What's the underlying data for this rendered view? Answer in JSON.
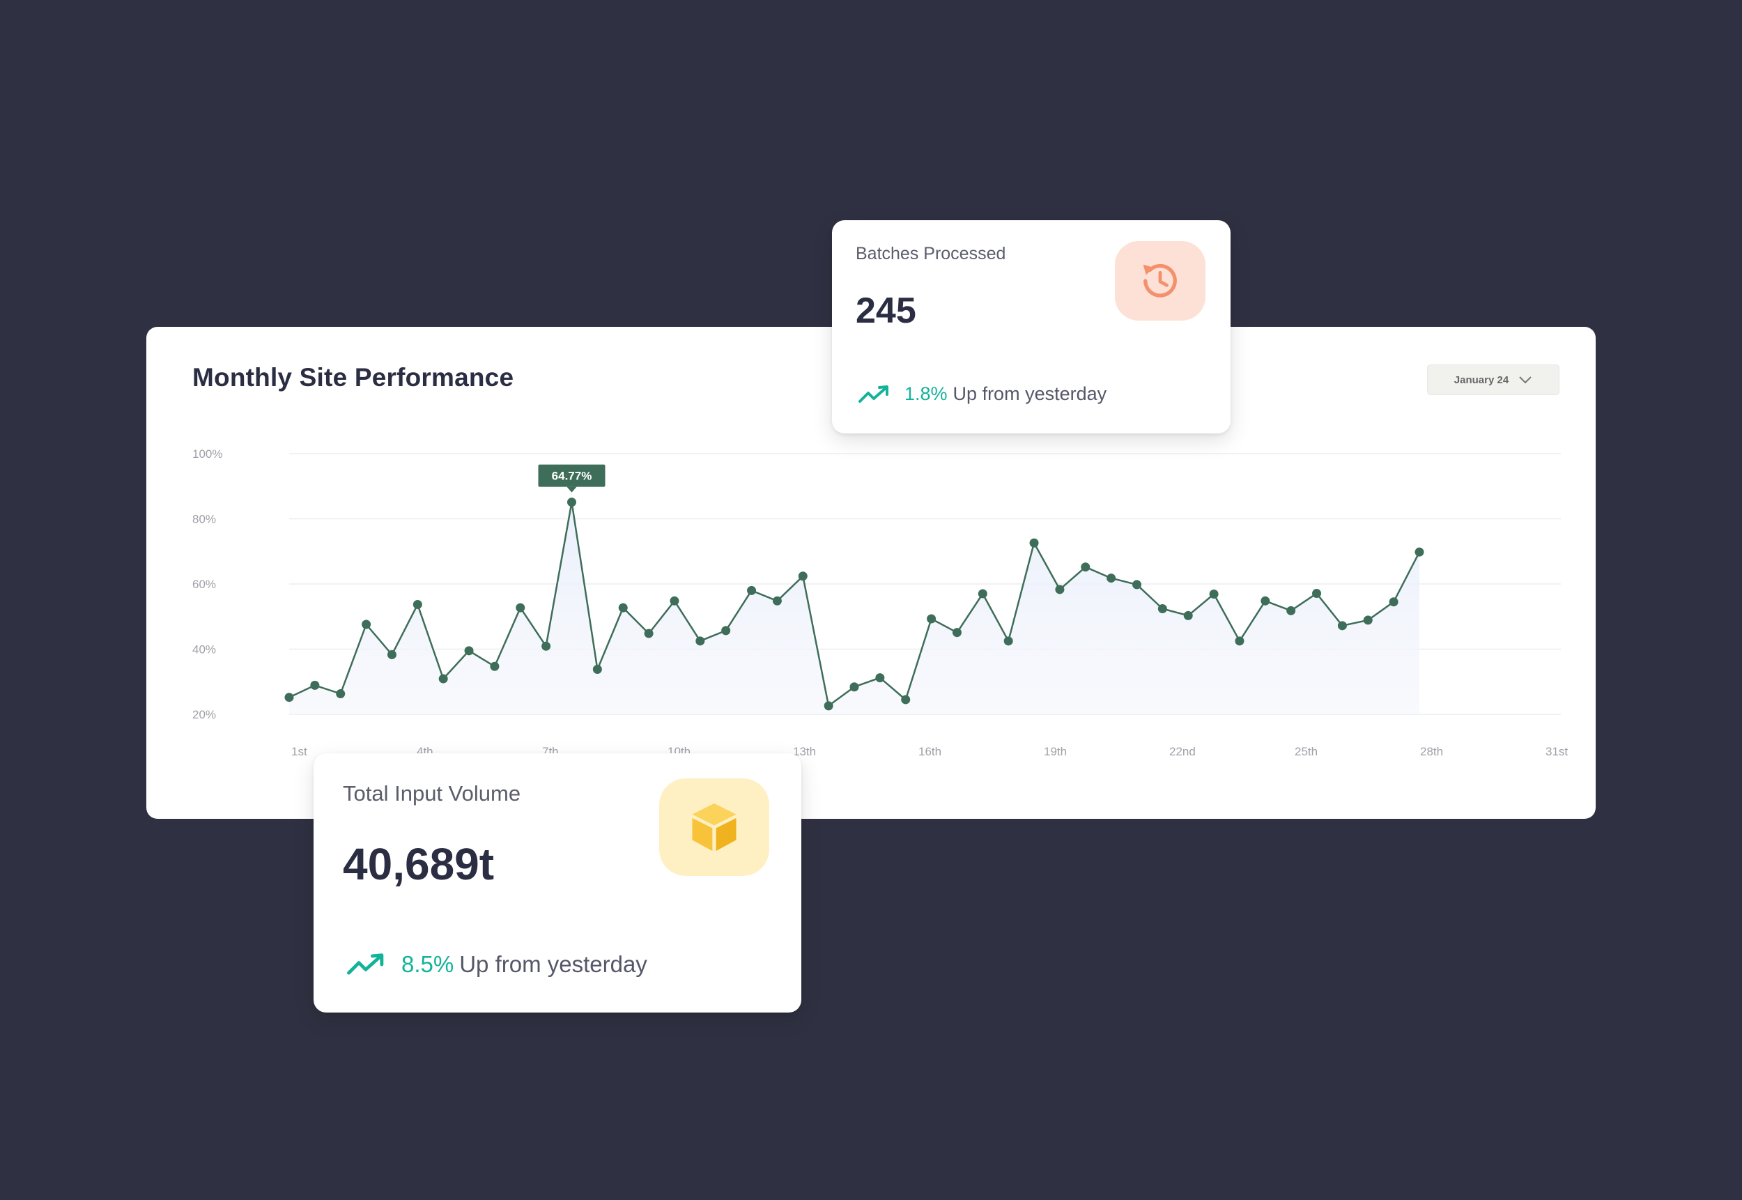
{
  "chart_card": {
    "title": "Monthly Site Performance",
    "date_select": "January 24",
    "tooltip": "64.77%"
  },
  "batches_card": {
    "label": "Batches Processed",
    "value": "245",
    "trend_percent": "1.8%",
    "trend_text": "Up from yesterday",
    "icon": "history-clock-icon",
    "icon_color": "#f4906c"
  },
  "input_card": {
    "label": "Total Input Volume",
    "value": "40,689t",
    "trend_percent": "8.5%",
    "trend_text": "Up from yesterday",
    "icon": "box-icon",
    "icon_color": "#f8c33a"
  },
  "colors": {
    "line": "#3e6d59",
    "trend": "#13b39a"
  },
  "chart_data": {
    "type": "line",
    "title": "Monthly Site Performance",
    "xlabel": "",
    "ylabel": "",
    "y_ticks": [
      "20%",
      "40%",
      "60%",
      "80%",
      "100%"
    ],
    "x_ticks": [
      "1st",
      "4th",
      "7th",
      "10th",
      "13th",
      "16th",
      "19th",
      "22nd",
      "25th",
      "28th",
      "31st"
    ],
    "ylim": [
      20,
      100
    ],
    "grid": true,
    "series": [
      {
        "values": [
          25.2,
          28.9,
          26.3,
          47.6,
          38.3,
          53.7,
          30.9,
          39.5,
          34.7,
          52.7,
          40.9,
          85.1,
          33.8,
          52.7,
          44.8,
          54.8,
          42.5,
          45.7,
          58.0,
          54.8,
          62.4,
          22.6,
          28.4,
          31.2,
          24.5,
          49.3,
          45.1,
          57.0,
          42.5,
          72.6,
          58.3,
          65.2,
          61.8,
          59.8,
          52.4,
          50.3,
          56.9,
          42.5,
          54.8,
          51.8,
          57.1,
          47.2,
          48.9,
          54.5,
          69.8
        ]
      }
    ]
  }
}
